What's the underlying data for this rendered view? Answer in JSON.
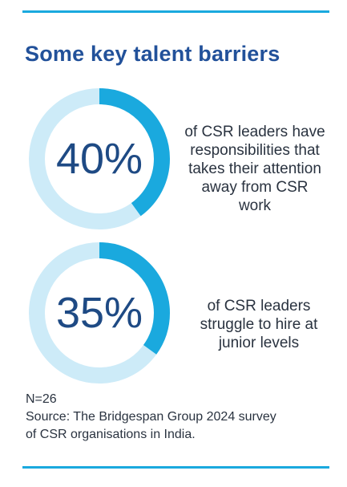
{
  "colors": {
    "accent": "#1aa9de",
    "track": "#cdebf8",
    "title": "#22519a",
    "number": "#1e4a84",
    "text": "#2a3340"
  },
  "title": "Some key talent barriers",
  "chart_data": [
    {
      "type": "pie",
      "value": 40,
      "label": "40%",
      "description_lines": [
        "of CSR leaders have",
        "responsibilities that",
        "takes their attention",
        "away from CSR",
        "work"
      ]
    },
    {
      "type": "pie",
      "value": 35,
      "label": "35%",
      "description_lines": [
        "of CSR leaders",
        "struggle to hire at",
        "junior levels"
      ]
    }
  ],
  "footnote": {
    "sample": "N=26",
    "source_line1": "Source: The Bridgespan Group 2024  survey",
    "source_line2": "of CSR organisations in India."
  }
}
